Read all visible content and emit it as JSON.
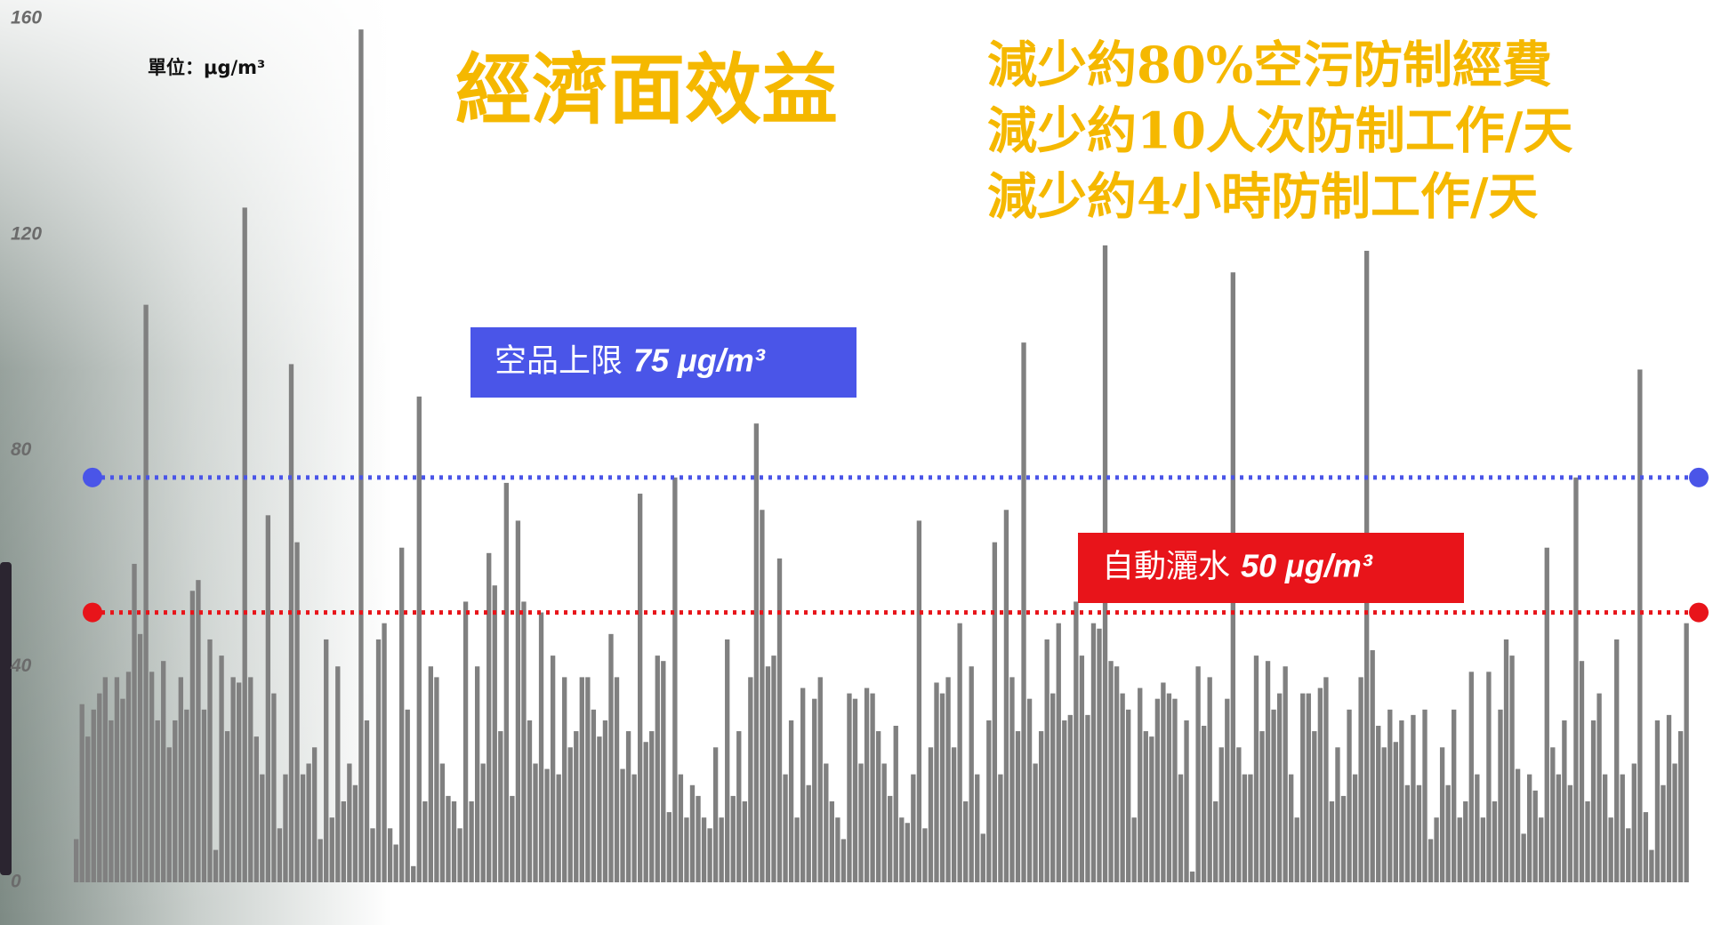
{
  "chart_data": {
    "type": "bar",
    "title": "經濟面效益",
    "annotations": [
      "減少約80%空污防制經費",
      "減少約10人次防制工作/天",
      "減少約4小時防制工作/天"
    ],
    "unit_label": "單位：μg/m³",
    "color": "#808080",
    "ylim": [
      0,
      160
    ],
    "yticks": [
      0,
      40,
      80,
      120,
      160
    ],
    "reference_lines": [
      {
        "name": "空品上限",
        "value": 75,
        "value_label": "75 μg/m³",
        "color": "#4a55e8"
      },
      {
        "name": "自動灑水",
        "value": 50,
        "value_label": "50 μg/m³",
        "color": "#e8141a"
      }
    ],
    "values": [
      8,
      33,
      27,
      32,
      35,
      38,
      30,
      38,
      34,
      39,
      59,
      46,
      107,
      39,
      30,
      41,
      25,
      30,
      38,
      32,
      54,
      56,
      32,
      45,
      6,
      42,
      28,
      38,
      37,
      125,
      38,
      27,
      20,
      68,
      35,
      10,
      20,
      96,
      63,
      20,
      22,
      25,
      8,
      45,
      12,
      40,
      15,
      22,
      18,
      158,
      30,
      10,
      45,
      48,
      10,
      7,
      62,
      32,
      3,
      90,
      15,
      40,
      38,
      22,
      16,
      15,
      10,
      52,
      15,
      40,
      22,
      61,
      55,
      28,
      74,
      16,
      67,
      52,
      30,
      22,
      50,
      21,
      42,
      20,
      38,
      25,
      28,
      38,
      38,
      32,
      27,
      30,
      46,
      38,
      21,
      28,
      20,
      72,
      26,
      28,
      42,
      41,
      13,
      75,
      20,
      12,
      18,
      16,
      12,
      10,
      25,
      12,
      45,
      16,
      28,
      15,
      38,
      85,
      69,
      40,
      42,
      60,
      20,
      30,
      12,
      36,
      18,
      34,
      38,
      22,
      15,
      12,
      8,
      35,
      34,
      22,
      36,
      35,
      28,
      22,
      16,
      29,
      12,
      11,
      20,
      67,
      10,
      25,
      37,
      35,
      38,
      25,
      48,
      15,
      40,
      20,
      9,
      30,
      63,
      20,
      69,
      38,
      28,
      100,
      34,
      22,
      28,
      45,
      35,
      48,
      30,
      31,
      52,
      42,
      31,
      48,
      47,
      118,
      41,
      40,
      35,
      32,
      12,
      36,
      28,
      27,
      34,
      37,
      35,
      34,
      20,
      30,
      2,
      40,
      29,
      38,
      15,
      25,
      34,
      113,
      25,
      20,
      20,
      42,
      28,
      41,
      32,
      35,
      40,
      20,
      12,
      35,
      35,
      28,
      36,
      38,
      15,
      25,
      16,
      32,
      20,
      38,
      117,
      43,
      29,
      25,
      32,
      26,
      30,
      18,
      31,
      18,
      32,
      8,
      12,
      25,
      18,
      32,
      12,
      15,
      39,
      20,
      12,
      39,
      15,
      32,
      45,
      42,
      21,
      9,
      20,
      17,
      12,
      62,
      25,
      20,
      30,
      18,
      75,
      41,
      15,
      30,
      35,
      20,
      12,
      45,
      20,
      10,
      22,
      95,
      13,
      6,
      30,
      18,
      31,
      22,
      28,
      48
    ]
  }
}
